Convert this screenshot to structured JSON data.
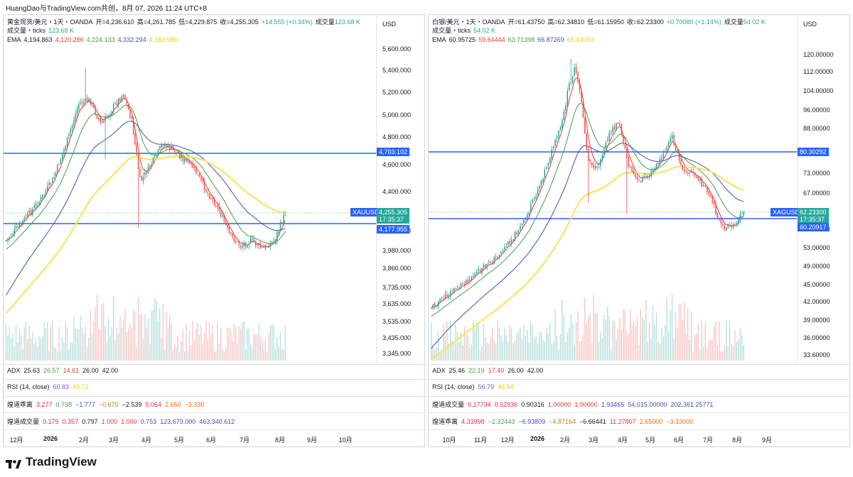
{
  "caption": "HuangDao与TradingView.com共创，8月 07, 2026 11:24 UTC+8",
  "footer_brand": "TradingView",
  "colors": {
    "up": "#26a69a",
    "down": "#ef5350",
    "blue": "#2962ff",
    "ema1": "#e53935",
    "ema2": "#43a047",
    "ema3": "#3f51b5",
    "ema4": "#f5e663"
  },
  "panels": [
    {
      "symbol_line": {
        "name": "黄金现货/美元・1天・OANDA",
        "o": "开=4,236.610",
        "h": "高=4,261.785",
        "l": "低=4,229.875",
        "c": "收=4,255.305",
        "chg": "+14.555 (+0.34%)",
        "vol_label": "成交量",
        "vol": "123.68 K"
      },
      "vol_line": {
        "label": "成交量・ticks",
        "value": "123.68 K"
      },
      "ema_line": {
        "label": "EMA",
        "v1": "4,194.863",
        "v2": "4,120.286",
        "v3": "4,224.133",
        "v4": "4,332.294",
        "v5": "4,383.986"
      },
      "currency": "USD",
      "price_ticks": [
        "5,600.000",
        "5,400.000",
        "5,200.000",
        "5,000.000",
        "4,800.000",
        "4,600.000",
        "4,400.000",
        "4,100.000",
        "3,980.000",
        "3,860.000",
        "3,735.000",
        "3,635.000",
        "3,535.000",
        "3,435.000",
        "3,345.000"
      ],
      "last_price": {
        "symbol": "XAUUSD",
        "value": "4,255.305",
        "countdown": "17:35:37"
      },
      "hlines": [
        "4,703.102",
        "4,177.955"
      ],
      "adx": {
        "label": "ADX",
        "v1": "25.63",
        "v2": "26.57",
        "v3": "14.61",
        "v4": "26.00",
        "v5": "42.00"
      },
      "rsi": {
        "label": "RSI (14, close)",
        "v1": "60.83",
        "v2": "49.72"
      },
      "ind3": {
        "label": "煌道乖离",
        "v1": "3.277",
        "v2": "0.738",
        "v3": "−1.777",
        "v4": "−0.670",
        "v5": "−2.539",
        "v6": "5.054",
        "v7": "2.650",
        "v8": "−3.330"
      },
      "ind4": {
        "label": "煌道成交量",
        "v1": "0.175",
        "v2": "0.357",
        "v3": "0.797",
        "v4": "1.000",
        "v5": "1.000",
        "v6": "0.753",
        "v7": "123,679.000",
        "v8": "463,340.612"
      },
      "x_ticks": [
        "12月",
        "2026",
        "2月",
        "3月",
        "4月",
        "5月",
        "6月",
        "7月",
        "8月",
        "9月",
        "10月"
      ]
    },
    {
      "symbol_line": {
        "name": "白银/美元・1天・OANDA",
        "o": "开=61.43750",
        "h": "高=62.34810",
        "l": "低=61.15950",
        "c": "收=62.23300",
        "chg": "+0.70080 (+1.14%)",
        "vol_label": "成交量",
        "vol": "54.02 K"
      },
      "vol_line": {
        "label": "成交量・ticks",
        "value": "54.02 K"
      },
      "ema_line": {
        "label": "EMA",
        "v1": "60.95725",
        "v2": "59.64444",
        "v3": "63.71398",
        "v4": "66.87269",
        "v5": "65.43003"
      },
      "currency": "USD",
      "price_ticks": [
        "120.00000",
        "112.00000",
        "104.00000",
        "96.00000",
        "88.00000",
        "80.30292",
        "73.00000",
        "67.00000",
        "57.00000",
        "53.00000",
        "49.00000",
        "45.00000",
        "42.00000",
        "39.00000",
        "36.00000",
        "33.60000"
      ],
      "last_price": {
        "symbol": "XAGUSD",
        "value": "62.23300",
        "countdown": "17:35:37"
      },
      "hlines": [
        "80.30292",
        "60.20917"
      ],
      "adx": {
        "label": "ADX",
        "v1": "25.46",
        "v2": "22.19",
        "v3": "17.40",
        "v4": "26.00",
        "v5": "42.00"
      },
      "rsi": {
        "label": "RSI (14, close)",
        "v1": "56.79",
        "v2": "46.94"
      },
      "ind3": {
        "label": "煌道成交量",
        "v1": "0.17734",
        "v2": "0.52936",
        "v3": "0.90316",
        "v4": "1.00000",
        "v5": "1.00000",
        "v6": "1.93465",
        "v7": "54,015.00000",
        "v8": "202,361.25771"
      },
      "ind4": {
        "label": "煌道乖离",
        "v1": "4.33998",
        "v2": "−2.32443",
        "v3": "−6.93809",
        "v4": "−4.87164",
        "v5": "−6.66441",
        "v6": "11.27807",
        "v7": "2.65000",
        "v8": "−3.33000"
      },
      "x_ticks": [
        "10月",
        "11月",
        "12月",
        "2026",
        "2月",
        "3月",
        "4月",
        "5月",
        "6月",
        "7月",
        "8月",
        "9月"
      ]
    }
  ]
}
